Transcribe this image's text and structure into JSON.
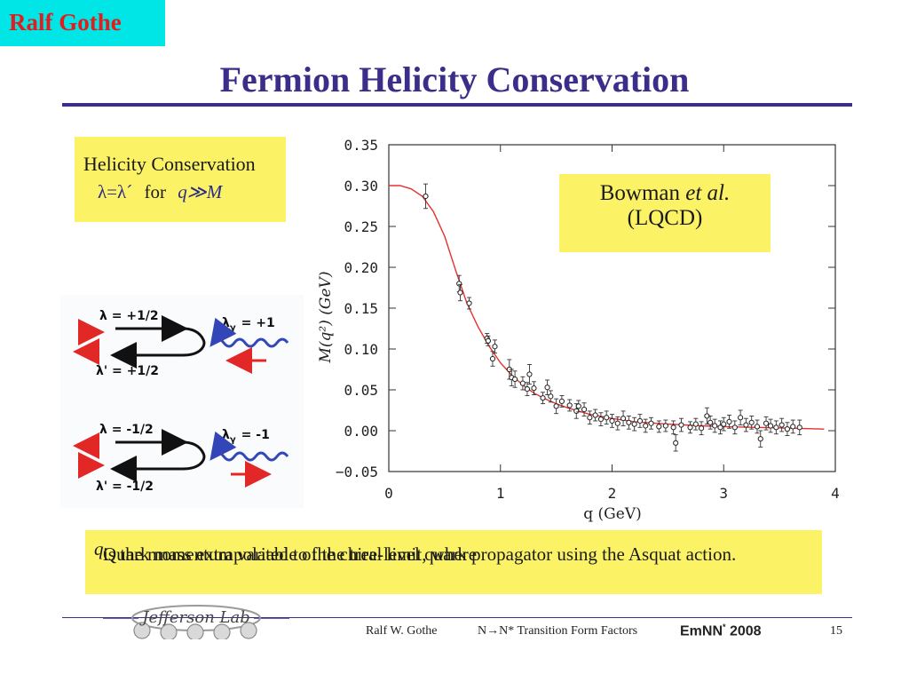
{
  "header": {
    "author_tag": "Ralf Gothe",
    "title": "Fermion Helicity Conservation"
  },
  "helicity_box": {
    "line1": "Helicity Conservation",
    "line2_lhs": "λ=λ´",
    "line2_for": "for",
    "line2_cond": "q≫M"
  },
  "diagram": {
    "upper": {
      "lambda": "λ  =  +1/2",
      "lambda_prime": "λ'  =  +1/2",
      "lambda_gamma": "λ",
      "lambda_gamma_sub": "γ",
      "lambda_gamma_val": "=  +1"
    },
    "lower": {
      "lambda": "λ  =  -1/2",
      "lambda_prime": "λ'  =  -1/2",
      "lambda_gamma": "λ",
      "lambda_gamma_sub": "γ",
      "lambda_gamma_val": "=  -1"
    },
    "colors": {
      "red": "#e22727",
      "blue": "#3246b8",
      "black": "#111111"
    }
  },
  "plot_annotation": {
    "line1_prefix": "Bowman ",
    "line1_italic": "et al.",
    "line2": "(LQCD)"
  },
  "chart_data": {
    "type": "scatter",
    "xlabel": "q (GeV)",
    "ylabel": "M(q²) (GeV)",
    "xlim": [
      0,
      4
    ],
    "ylim": [
      -0.05,
      0.35
    ],
    "x_ticks": [
      0,
      1,
      2,
      3,
      4
    ],
    "y_ticks": [
      -0.05,
      0.0,
      0.05,
      0.1,
      0.15,
      0.2,
      0.25,
      0.3,
      0.35
    ],
    "y_tick_labels": [
      "−0.05",
      "0.00",
      "0.05",
      "0.10",
      "0.15",
      "0.20",
      "0.25",
      "0.30",
      "0.35"
    ],
    "fit_color": "#e53030",
    "fit_curve": [
      [
        0.0,
        0.3
      ],
      [
        0.1,
        0.3
      ],
      [
        0.2,
        0.296
      ],
      [
        0.3,
        0.287
      ],
      [
        0.4,
        0.268
      ],
      [
        0.5,
        0.238
      ],
      [
        0.6,
        0.196
      ],
      [
        0.7,
        0.156
      ],
      [
        0.8,
        0.127
      ],
      [
        0.9,
        0.103
      ],
      [
        1.0,
        0.083
      ],
      [
        1.1,
        0.068
      ],
      [
        1.2,
        0.056
      ],
      [
        1.3,
        0.046
      ],
      [
        1.4,
        0.039
      ],
      [
        1.5,
        0.033
      ],
      [
        1.6,
        0.028
      ],
      [
        1.7,
        0.024
      ],
      [
        1.8,
        0.02
      ],
      [
        2.0,
        0.015
      ],
      [
        2.2,
        0.011
      ],
      [
        2.5,
        0.008
      ],
      [
        2.8,
        0.006
      ],
      [
        3.0,
        0.005
      ],
      [
        3.3,
        0.004
      ],
      [
        3.6,
        0.003
      ],
      [
        3.9,
        0.002
      ]
    ],
    "points": [
      {
        "x": 0.33,
        "y": 0.287,
        "e": 0.015
      },
      {
        "x": 0.63,
        "y": 0.18,
        "e": 0.01
      },
      {
        "x": 0.64,
        "y": 0.169,
        "e": 0.01
      },
      {
        "x": 0.72,
        "y": 0.156,
        "e": 0.007
      },
      {
        "x": 0.88,
        "y": 0.113,
        "e": 0.006
      },
      {
        "x": 0.89,
        "y": 0.11,
        "e": 0.006
      },
      {
        "x": 0.93,
        "y": 0.088,
        "e": 0.009
      },
      {
        "x": 0.95,
        "y": 0.103,
        "e": 0.008
      },
      {
        "x": 1.08,
        "y": 0.075,
        "e": 0.012
      },
      {
        "x": 1.1,
        "y": 0.065,
        "e": 0.01
      },
      {
        "x": 1.13,
        "y": 0.063,
        "e": 0.01
      },
      {
        "x": 1.2,
        "y": 0.058,
        "e": 0.008
      },
      {
        "x": 1.24,
        "y": 0.051,
        "e": 0.008
      },
      {
        "x": 1.26,
        "y": 0.069,
        "e": 0.012
      },
      {
        "x": 1.3,
        "y": 0.052,
        "e": 0.008
      },
      {
        "x": 1.38,
        "y": 0.04,
        "e": 0.007
      },
      {
        "x": 1.42,
        "y": 0.053,
        "e": 0.009
      },
      {
        "x": 1.45,
        "y": 0.042,
        "e": 0.007
      },
      {
        "x": 1.5,
        "y": 0.03,
        "e": 0.009
      },
      {
        "x": 1.55,
        "y": 0.036,
        "e": 0.007
      },
      {
        "x": 1.62,
        "y": 0.031,
        "e": 0.007
      },
      {
        "x": 1.68,
        "y": 0.024,
        "e": 0.009
      },
      {
        "x": 1.7,
        "y": 0.03,
        "e": 0.007
      },
      {
        "x": 1.75,
        "y": 0.026,
        "e": 0.008
      },
      {
        "x": 1.8,
        "y": 0.016,
        "e": 0.008
      },
      {
        "x": 1.85,
        "y": 0.019,
        "e": 0.007
      },
      {
        "x": 1.9,
        "y": 0.014,
        "e": 0.008
      },
      {
        "x": 1.95,
        "y": 0.016,
        "e": 0.008
      },
      {
        "x": 2.0,
        "y": 0.012,
        "e": 0.008
      },
      {
        "x": 2.05,
        "y": 0.009,
        "e": 0.008
      },
      {
        "x": 2.1,
        "y": 0.015,
        "e": 0.009
      },
      {
        "x": 2.15,
        "y": 0.01,
        "e": 0.008
      },
      {
        "x": 2.2,
        "y": 0.008,
        "e": 0.008
      },
      {
        "x": 2.25,
        "y": 0.012,
        "e": 0.008
      },
      {
        "x": 2.3,
        "y": 0.006,
        "e": 0.008
      },
      {
        "x": 2.35,
        "y": 0.009,
        "e": 0.007
      },
      {
        "x": 2.42,
        "y": 0.005,
        "e": 0.007
      },
      {
        "x": 2.48,
        "y": 0.006,
        "e": 0.007
      },
      {
        "x": 2.55,
        "y": 0.004,
        "e": 0.008
      },
      {
        "x": 2.57,
        "y": -0.015,
        "e": 0.01
      },
      {
        "x": 2.62,
        "y": 0.007,
        "e": 0.008
      },
      {
        "x": 2.7,
        "y": 0.004,
        "e": 0.007
      },
      {
        "x": 2.75,
        "y": 0.008,
        "e": 0.007
      },
      {
        "x": 2.8,
        "y": 0.003,
        "e": 0.008
      },
      {
        "x": 2.85,
        "y": 0.018,
        "e": 0.01
      },
      {
        "x": 2.88,
        "y": 0.01,
        "e": 0.008
      },
      {
        "x": 2.92,
        "y": 0.006,
        "e": 0.008
      },
      {
        "x": 2.97,
        "y": 0.004,
        "e": 0.008
      },
      {
        "x": 3.0,
        "y": 0.008,
        "e": 0.008
      },
      {
        "x": 3.05,
        "y": 0.011,
        "e": 0.008
      },
      {
        "x": 3.1,
        "y": 0.004,
        "e": 0.008
      },
      {
        "x": 3.15,
        "y": 0.016,
        "e": 0.009
      },
      {
        "x": 3.2,
        "y": 0.007,
        "e": 0.008
      },
      {
        "x": 3.25,
        "y": 0.01,
        "e": 0.008
      },
      {
        "x": 3.3,
        "y": 0.005,
        "e": 0.008
      },
      {
        "x": 3.33,
        "y": -0.01,
        "e": 0.01
      },
      {
        "x": 3.38,
        "y": 0.009,
        "e": 0.008
      },
      {
        "x": 3.42,
        "y": 0.006,
        "e": 0.008
      },
      {
        "x": 3.47,
        "y": 0.004,
        "e": 0.008
      },
      {
        "x": 3.52,
        "y": 0.007,
        "e": 0.008
      },
      {
        "x": 3.57,
        "y": 0.002,
        "e": 0.008
      },
      {
        "x": 3.62,
        "y": 0.005,
        "e": 0.008
      },
      {
        "x": 3.68,
        "y": 0.004,
        "e": 0.009
      }
    ]
  },
  "caption": {
    "text_before": "Quark mass extrapolated to the chiral limit, where ",
    "text_var": "q",
    "text_after": " is the momentum variable of the tree-level quark propagator using the Asquat action."
  },
  "footer": {
    "logo_text": "Jefferson Lab",
    "author": "Ralf W. Gothe",
    "topic": "N→N* Transition Form Factors",
    "conference": "EmNN",
    "conference_sup": "*",
    "conference_year": " 2008",
    "page": "15"
  }
}
